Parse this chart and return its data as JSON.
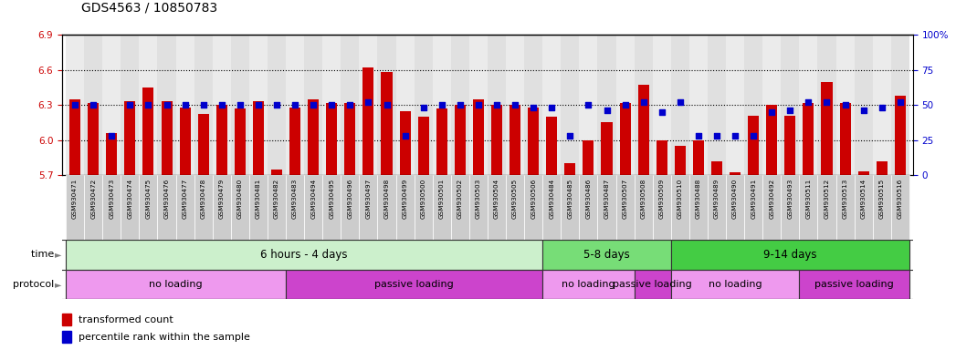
{
  "title": "GDS4563 / 10850783",
  "samples": [
    "GSM930471",
    "GSM930472",
    "GSM930473",
    "GSM930474",
    "GSM930475",
    "GSM930476",
    "GSM930477",
    "GSM930478",
    "GSM930479",
    "GSM930480",
    "GSM930481",
    "GSM930482",
    "GSM930483",
    "GSM930494",
    "GSM930495",
    "GSM930496",
    "GSM930497",
    "GSM930498",
    "GSM930499",
    "GSM930500",
    "GSM930501",
    "GSM930502",
    "GSM930503",
    "GSM930504",
    "GSM930505",
    "GSM930506",
    "GSM930484",
    "GSM930485",
    "GSM930486",
    "GSM930487",
    "GSM930507",
    "GSM930508",
    "GSM930509",
    "GSM930510",
    "GSM930488",
    "GSM930489",
    "GSM930490",
    "GSM930491",
    "GSM930492",
    "GSM930493",
    "GSM930511",
    "GSM930512",
    "GSM930513",
    "GSM930514",
    "GSM930515",
    "GSM930516"
  ],
  "bar_values": [
    6.35,
    6.32,
    6.06,
    6.33,
    6.45,
    6.33,
    6.28,
    6.22,
    6.3,
    6.27,
    6.33,
    5.75,
    6.28,
    6.35,
    6.32,
    6.32,
    6.62,
    6.58,
    6.25,
    6.2,
    6.27,
    6.3,
    6.35,
    6.3,
    6.3,
    6.28,
    6.2,
    5.8,
    6.0,
    6.15,
    6.32,
    6.47,
    6.0,
    5.95,
    6.0,
    5.82,
    5.72,
    6.21,
    6.3,
    6.21,
    6.32,
    6.5,
    6.32,
    5.73,
    5.82,
    6.38
  ],
  "percentile_values": [
    50,
    50,
    28,
    50,
    50,
    50,
    50,
    50,
    50,
    50,
    50,
    50,
    50,
    50,
    50,
    50,
    52,
    50,
    28,
    48,
    50,
    50,
    50,
    50,
    50,
    48,
    48,
    28,
    50,
    46,
    50,
    52,
    45,
    52,
    28,
    28,
    28,
    28,
    45,
    46,
    52,
    52,
    50,
    46,
    48,
    52
  ],
  "ylim_left": [
    5.7,
    6.9
  ],
  "ylim_right": [
    0,
    100
  ],
  "yticks_left": [
    5.7,
    6.0,
    6.3,
    6.6,
    6.9
  ],
  "yticks_right": [
    0,
    25,
    50,
    75,
    100
  ],
  "hlines": [
    6.0,
    6.3,
    6.6
  ],
  "bar_color": "#cc0000",
  "percentile_color": "#0000cc",
  "bar_width": 0.6,
  "time_groups": [
    {
      "label": "6 hours - 4 days",
      "start": 0,
      "end": 25,
      "color": "#ccf0cc"
    },
    {
      "label": "5-8 days",
      "start": 26,
      "end": 32,
      "color": "#77dd77"
    },
    {
      "label": "9-14 days",
      "start": 33,
      "end": 45,
      "color": "#44cc44"
    }
  ],
  "protocol_groups": [
    {
      "label": "no loading",
      "start": 0,
      "end": 11,
      "color": "#ee99ee"
    },
    {
      "label": "passive loading",
      "start": 12,
      "end": 25,
      "color": "#cc44cc"
    },
    {
      "label": "no loading",
      "start": 26,
      "end": 30,
      "color": "#ee99ee"
    },
    {
      "label": "passive loading",
      "start": 31,
      "end": 32,
      "color": "#cc44cc"
    },
    {
      "label": "no loading",
      "start": 33,
      "end": 39,
      "color": "#ee99ee"
    },
    {
      "label": "passive loading",
      "start": 40,
      "end": 45,
      "color": "#cc44cc"
    }
  ],
  "legend_bar_label": "transformed count",
  "legend_pct_label": "percentile rank within the sample",
  "title_fontsize": 10,
  "axis_label_color_left": "#cc0000",
  "axis_label_color_right": "#0000cc",
  "xtick_bg_color": "#cccccc",
  "panel_border_color": "#333333"
}
